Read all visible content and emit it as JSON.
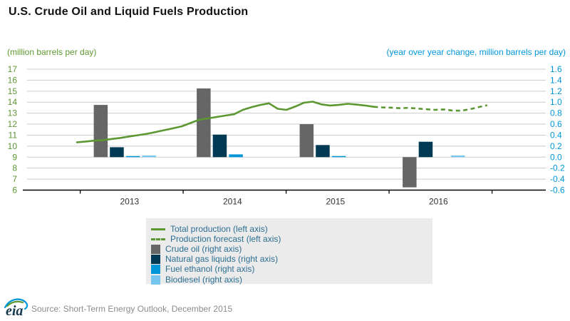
{
  "title": "U.S. Crude Oil and Liquid Fuels Production",
  "left_axis_unit_label": "(million barrels per day)",
  "right_axis_unit_label": "(year over year change, million barrels per day)",
  "source_note": "Source: Short-Term Energy Outlook, December 2015",
  "logo_text": "eia",
  "colors": {
    "line_green": "#5D9732",
    "crude_gray": "#666666",
    "ngl_navy": "#003953",
    "ethanol_blue": "#0096D7",
    "biodiesel_lightblue": "#76C5EF",
    "gridline": "#CCCCCC",
    "axis_baseline": "#000000",
    "left_tick_text": "#5D9732",
    "right_tick_text": "#0096D7",
    "year_label_text": "#333333",
    "legend_text": "#2C6E91",
    "legend_background": "#EBEBEB",
    "source_text": "#8C8C8C"
  },
  "legend": {
    "items": [
      {
        "label": "Total production (left axis)",
        "swatch": "line",
        "color": "#5D9732"
      },
      {
        "label": "Production forecast (left axis)",
        "swatch": "dashed-line",
        "color": "#5D9732"
      },
      {
        "label": "Crude oil (right axis)",
        "swatch": "square",
        "color": "#666666"
      },
      {
        "label": "Natural gas liquids (right axis)",
        "swatch": "square",
        "color": "#003953"
      },
      {
        "label": "Fuel ethanol (right axis)",
        "swatch": "square",
        "color": "#0096D7"
      },
      {
        "label": "Biodiesel (right axis)",
        "swatch": "square",
        "color": "#76C5EF"
      }
    ]
  },
  "chart_data": {
    "type": "combo line + grouped bar",
    "title": "U.S. Crude Oil and Liquid Fuels Production",
    "left_axis": {
      "label": "(million barrels per day)",
      "min": 6,
      "max": 17,
      "tick_step": 1,
      "tick_labels": [
        "17",
        "16",
        "15",
        "14",
        "13",
        "12",
        "11",
        "10",
        "9",
        "8",
        "7",
        "6"
      ]
    },
    "right_axis": {
      "label": "(year over year change, million barrels per day)",
      "min": -0.6,
      "max": 1.6,
      "tick_step": 0.2,
      "tick_labels": [
        "1.6",
        "1.4",
        "1.2",
        "1.0",
        "0.8",
        "0.6",
        "0.4",
        "0.2",
        "0.0",
        "-0.2",
        "-0.4",
        "-0.6"
      ]
    },
    "x_year_labels": [
      "2013",
      "2014",
      "2015",
      "2016"
    ],
    "grid": true,
    "legend_position": "bottom",
    "line_series": {
      "name": "Total production",
      "forecast_name": "Production forecast",
      "axis": "left",
      "style": "solid then dashed forecast",
      "x_monthly_start": "2013-01",
      "x_monthly_end": "2016-12",
      "forecast_start_index": 34,
      "values": [
        10.35,
        10.42,
        10.5,
        10.55,
        10.65,
        10.75,
        10.88,
        11.0,
        11.12,
        11.28,
        11.45,
        11.62,
        11.8,
        12.1,
        12.4,
        12.52,
        12.65,
        12.78,
        12.9,
        13.3,
        13.55,
        13.75,
        13.9,
        13.4,
        13.3,
        13.6,
        13.95,
        14.05,
        13.8,
        13.7,
        13.75,
        13.85,
        13.78,
        13.7,
        13.58,
        13.52,
        13.5,
        13.45,
        13.48,
        13.42,
        13.36,
        13.3,
        13.34,
        13.24,
        13.22,
        13.35,
        13.55,
        13.72
      ]
    },
    "bar_categories": [
      "2013",
      "2014",
      "2015",
      "2016"
    ],
    "bar_series": [
      {
        "name": "Crude oil",
        "axis": "right",
        "color": "#666666",
        "values": [
          0.95,
          1.25,
          0.6,
          -0.55
        ]
      },
      {
        "name": "Natural gas liquids",
        "axis": "right",
        "color": "#003953",
        "values": [
          0.18,
          0.41,
          0.22,
          0.28
        ]
      },
      {
        "name": "Fuel ethanol",
        "axis": "right",
        "color": "#0096D7",
        "values": [
          0.02,
          0.05,
          0.02,
          0.0
        ]
      },
      {
        "name": "Biodiesel",
        "axis": "right",
        "color": "#76C5EF",
        "values": [
          0.03,
          0.0,
          0.0,
          0.03
        ]
      }
    ]
  }
}
